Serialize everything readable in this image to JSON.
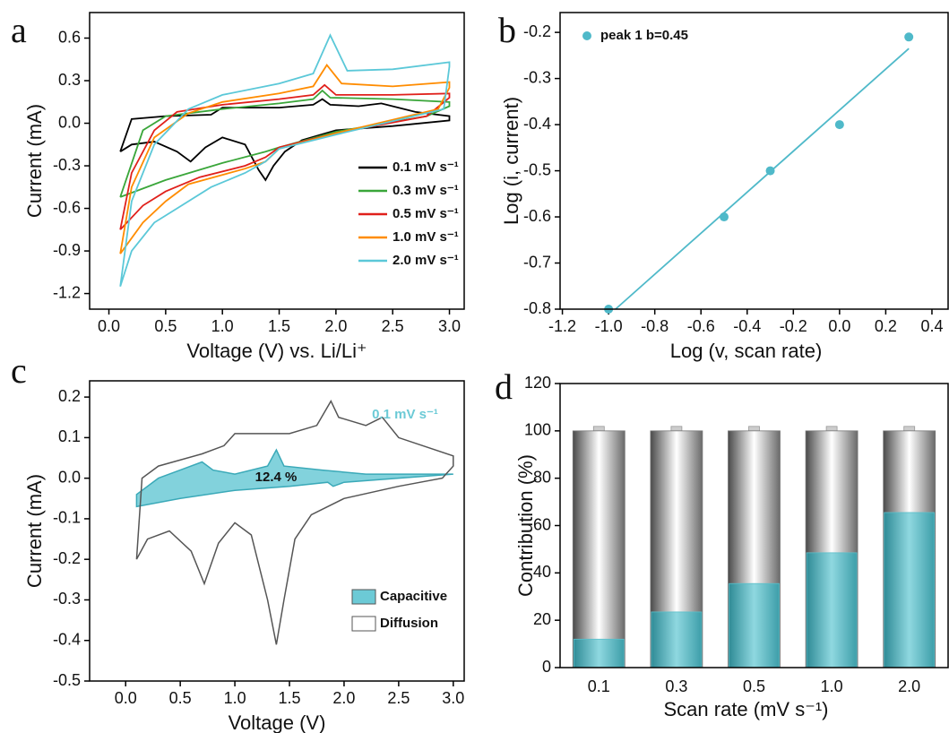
{
  "chart_data": [
    {
      "label": "a",
      "type": "line",
      "x_label": "Voltage (V) vs. Li/Li⁺",
      "y_label": "Current (mA)",
      "xlim": [
        -0.17,
        3.13
      ],
      "ylim": [
        -1.31,
        0.78
      ],
      "xticks": [
        {
          "value": 0,
          "label": "0.0"
        },
        0.5,
        {
          "value": 1,
          "label": "1.0"
        },
        1.5,
        {
          "value": 2,
          "label": "2.0"
        },
        2.5,
        {
          "value": 3,
          "label": "3.0"
        }
      ],
      "yticks": [
        -1.2,
        -0.9,
        -0.6,
        -0.3,
        {
          "value": 0,
          "label": "0.0"
        },
        0.3,
        0.6
      ],
      "legend": "lower right",
      "series": [
        {
          "name": "0.1 mV s⁻¹",
          "color": "#000000",
          "x": [
            0.1,
            0.2,
            0.5,
            0.9,
            1.0,
            1.5,
            1.8,
            1.88,
            1.95,
            2.2,
            2.4,
            2.7,
            3.0,
            3.0,
            2.5,
            2.0,
            1.7,
            1.55,
            1.45,
            1.38,
            1.32,
            1.2,
            1.0,
            0.85,
            0.72,
            0.6,
            0.4,
            0.2,
            0.1
          ],
          "values": [
            -0.2,
            0.03,
            0.05,
            0.06,
            0.11,
            0.11,
            0.13,
            0.17,
            0.13,
            0.12,
            0.14,
            0.08,
            0.05,
            0.02,
            -0.02,
            -0.05,
            -0.12,
            -0.2,
            -0.3,
            -0.4,
            -0.33,
            -0.15,
            -0.1,
            -0.17,
            -0.27,
            -0.2,
            -0.13,
            -0.15,
            -0.2
          ]
        },
        {
          "name": "0.3 mV s⁻¹",
          "color": "#3aa63a",
          "x": [
            0.1,
            0.3,
            0.5,
            1.0,
            1.5,
            1.8,
            1.88,
            1.95,
            2.5,
            3.0,
            3.0,
            2.8,
            2.0,
            1.5,
            1.38,
            1.0,
            0.5,
            0.1
          ],
          "values": [
            -0.52,
            -0.05,
            0.05,
            0.1,
            0.14,
            0.17,
            0.23,
            0.18,
            0.17,
            0.15,
            0.12,
            0.05,
            -0.06,
            -0.17,
            -0.2,
            -0.28,
            -0.4,
            -0.52
          ]
        },
        {
          "name": "0.5 mV s⁻¹",
          "color": "#e0201b",
          "x": [
            0.1,
            0.2,
            0.4,
            0.6,
            1.0,
            1.5,
            1.8,
            1.9,
            2.0,
            2.5,
            3.0,
            3.0,
            2.8,
            2.0,
            1.5,
            1.38,
            1.2,
            0.8,
            0.5,
            0.3,
            0.1
          ],
          "values": [
            -0.75,
            -0.35,
            -0.05,
            0.08,
            0.13,
            0.17,
            0.2,
            0.27,
            0.2,
            0.2,
            0.21,
            0.18,
            0.05,
            -0.07,
            -0.17,
            -0.24,
            -0.3,
            -0.38,
            -0.48,
            -0.58,
            -0.75
          ]
        },
        {
          "name": "1.0 mV s⁻¹",
          "color": "#ff8c00",
          "x": [
            0.1,
            0.2,
            0.4,
            0.7,
            1.0,
            1.5,
            1.8,
            1.92,
            2.05,
            2.5,
            3.0,
            3.0,
            2.9,
            2.0,
            1.5,
            1.38,
            1.2,
            0.7,
            0.5,
            0.3,
            0.1
          ],
          "values": [
            -0.92,
            -0.45,
            -0.1,
            0.07,
            0.15,
            0.21,
            0.26,
            0.41,
            0.28,
            0.26,
            0.29,
            0.25,
            0.1,
            -0.07,
            -0.18,
            -0.27,
            -0.32,
            -0.43,
            -0.55,
            -0.7,
            -0.92
          ]
        },
        {
          "name": "2.0 mV s⁻¹",
          "color": "#5bc8d8",
          "x": [
            0.1,
            0.2,
            0.4,
            0.7,
            1.0,
            1.5,
            1.8,
            1.95,
            2.1,
            2.5,
            3.0,
            3.0,
            2.95,
            2.0,
            1.5,
            1.38,
            1.2,
            0.9,
            0.6,
            0.4,
            0.2,
            0.1
          ],
          "values": [
            -1.15,
            -0.55,
            -0.15,
            0.1,
            0.2,
            0.28,
            0.35,
            0.62,
            0.37,
            0.38,
            0.43,
            0.4,
            0.1,
            -0.08,
            -0.18,
            -0.27,
            -0.35,
            -0.45,
            -0.6,
            -0.7,
            -0.9,
            -1.15
          ]
        }
      ]
    },
    {
      "label": "b",
      "type": "scatter",
      "x_label": "Log (v, scan rate)",
      "y_label": "Log (i, current)",
      "xlim": [
        -1.21,
        0.47
      ],
      "ylim": [
        -0.8,
        -0.157
      ],
      "xticks": [
        -1.2,
        {
          "value": -1,
          "label": "-1.0"
        },
        -0.8,
        -0.6,
        -0.4,
        -0.2,
        {
          "value": 0,
          "label": "0.0"
        },
        0.2,
        0.4
      ],
      "yticks": [
        -0.8,
        -0.7,
        -0.6,
        -0.5,
        -0.4,
        -0.3,
        -0.2
      ],
      "legend": "upper left",
      "series": [
        {
          "name": "peak 1 b=0.45",
          "color": "#4fb9c9",
          "x": [
            -1.0,
            -0.5,
            -0.3,
            0,
            0.3
          ],
          "values": [
            -0.8,
            -0.6,
            -0.5,
            -0.4,
            -0.21
          ]
        }
      ],
      "fit": {
        "x": [
          -0.97,
          0.3
        ],
        "values": [
          -0.8,
          -0.235
        ],
        "color": "#4fb9c9"
      }
    },
    {
      "label": "c",
      "type": "area",
      "x_label": "Voltage (V)",
      "y_label": "Current (mA)",
      "xlim": [
        -0.33,
        3.1
      ],
      "ylim": [
        -0.5,
        0.24
      ],
      "xticks": [
        {
          "value": 0,
          "label": "0.0"
        },
        0.5,
        {
          "value": 1,
          "label": "1.0"
        },
        1.5,
        {
          "value": 2,
          "label": "2.0"
        },
        2.5,
        {
          "value": 3,
          "label": "3.0"
        }
      ],
      "yticks": [
        -0.5,
        -0.4,
        -0.3,
        -0.2,
        -0.1,
        {
          "value": 0,
          "label": "0.0"
        },
        0.1,
        0.2
      ],
      "legend": "lower right",
      "annotations": [
        "12.4 %",
        "0.1 mV s⁻¹"
      ],
      "series": [
        {
          "name": "Capacitive",
          "color": "#6ccad6",
          "fill": true,
          "x": [
            0.1,
            0.3,
            0.5,
            0.7,
            0.8,
            1.0,
            1.3,
            1.38,
            1.45,
            1.8,
            2.2,
            3.0,
            2.5,
            2.0,
            1.9,
            1.85,
            1.5,
            1.0,
            0.5,
            0.1
          ],
          "values": [
            -0.04,
            0.0,
            0.02,
            0.04,
            0.02,
            0.01,
            0.03,
            0.07,
            0.03,
            0.02,
            0.01,
            0.01,
            0.0,
            -0.01,
            -0.02,
            -0.01,
            -0.02,
            -0.03,
            -0.05,
            -0.07
          ]
        },
        {
          "name": "Diffusion",
          "color": "#555555",
          "fill": false,
          "x": [
            0.1,
            0.15,
            0.3,
            0.7,
            0.9,
            1.0,
            1.2,
            1.5,
            1.75,
            1.88,
            1.95,
            2.2,
            2.35,
            2.5,
            3.0,
            3.0,
            2.9,
            2.5,
            2.0,
            1.7,
            1.55,
            1.45,
            1.38,
            1.3,
            1.15,
            1.0,
            0.85,
            0.72,
            0.6,
            0.4,
            0.2,
            0.1
          ],
          "values": [
            -0.2,
            0.0,
            0.03,
            0.06,
            0.08,
            0.11,
            0.11,
            0.11,
            0.13,
            0.19,
            0.15,
            0.13,
            0.15,
            0.1,
            0.055,
            0.03,
            0.0,
            -0.02,
            -0.05,
            -0.09,
            -0.15,
            -0.3,
            -0.41,
            -0.3,
            -0.14,
            -0.11,
            -0.16,
            -0.26,
            -0.18,
            -0.13,
            -0.15,
            -0.2
          ]
        }
      ]
    },
    {
      "label": "d",
      "type": "bar",
      "x_label": "Scan rate (mV s⁻¹)",
      "y_label": "Contribution (%)",
      "categories": [
        "0.1",
        "0.3",
        "0.5",
        "1.0",
        "2.0"
      ],
      "values": [
        12,
        23.5,
        35.5,
        48.5,
        65.5
      ],
      "full_values": [
        100,
        100,
        100,
        100,
        100
      ],
      "color": "#5bbfca",
      "ylim": [
        0,
        120
      ],
      "yticks": [
        0,
        20,
        40,
        60,
        80,
        100,
        120
      ]
    }
  ]
}
